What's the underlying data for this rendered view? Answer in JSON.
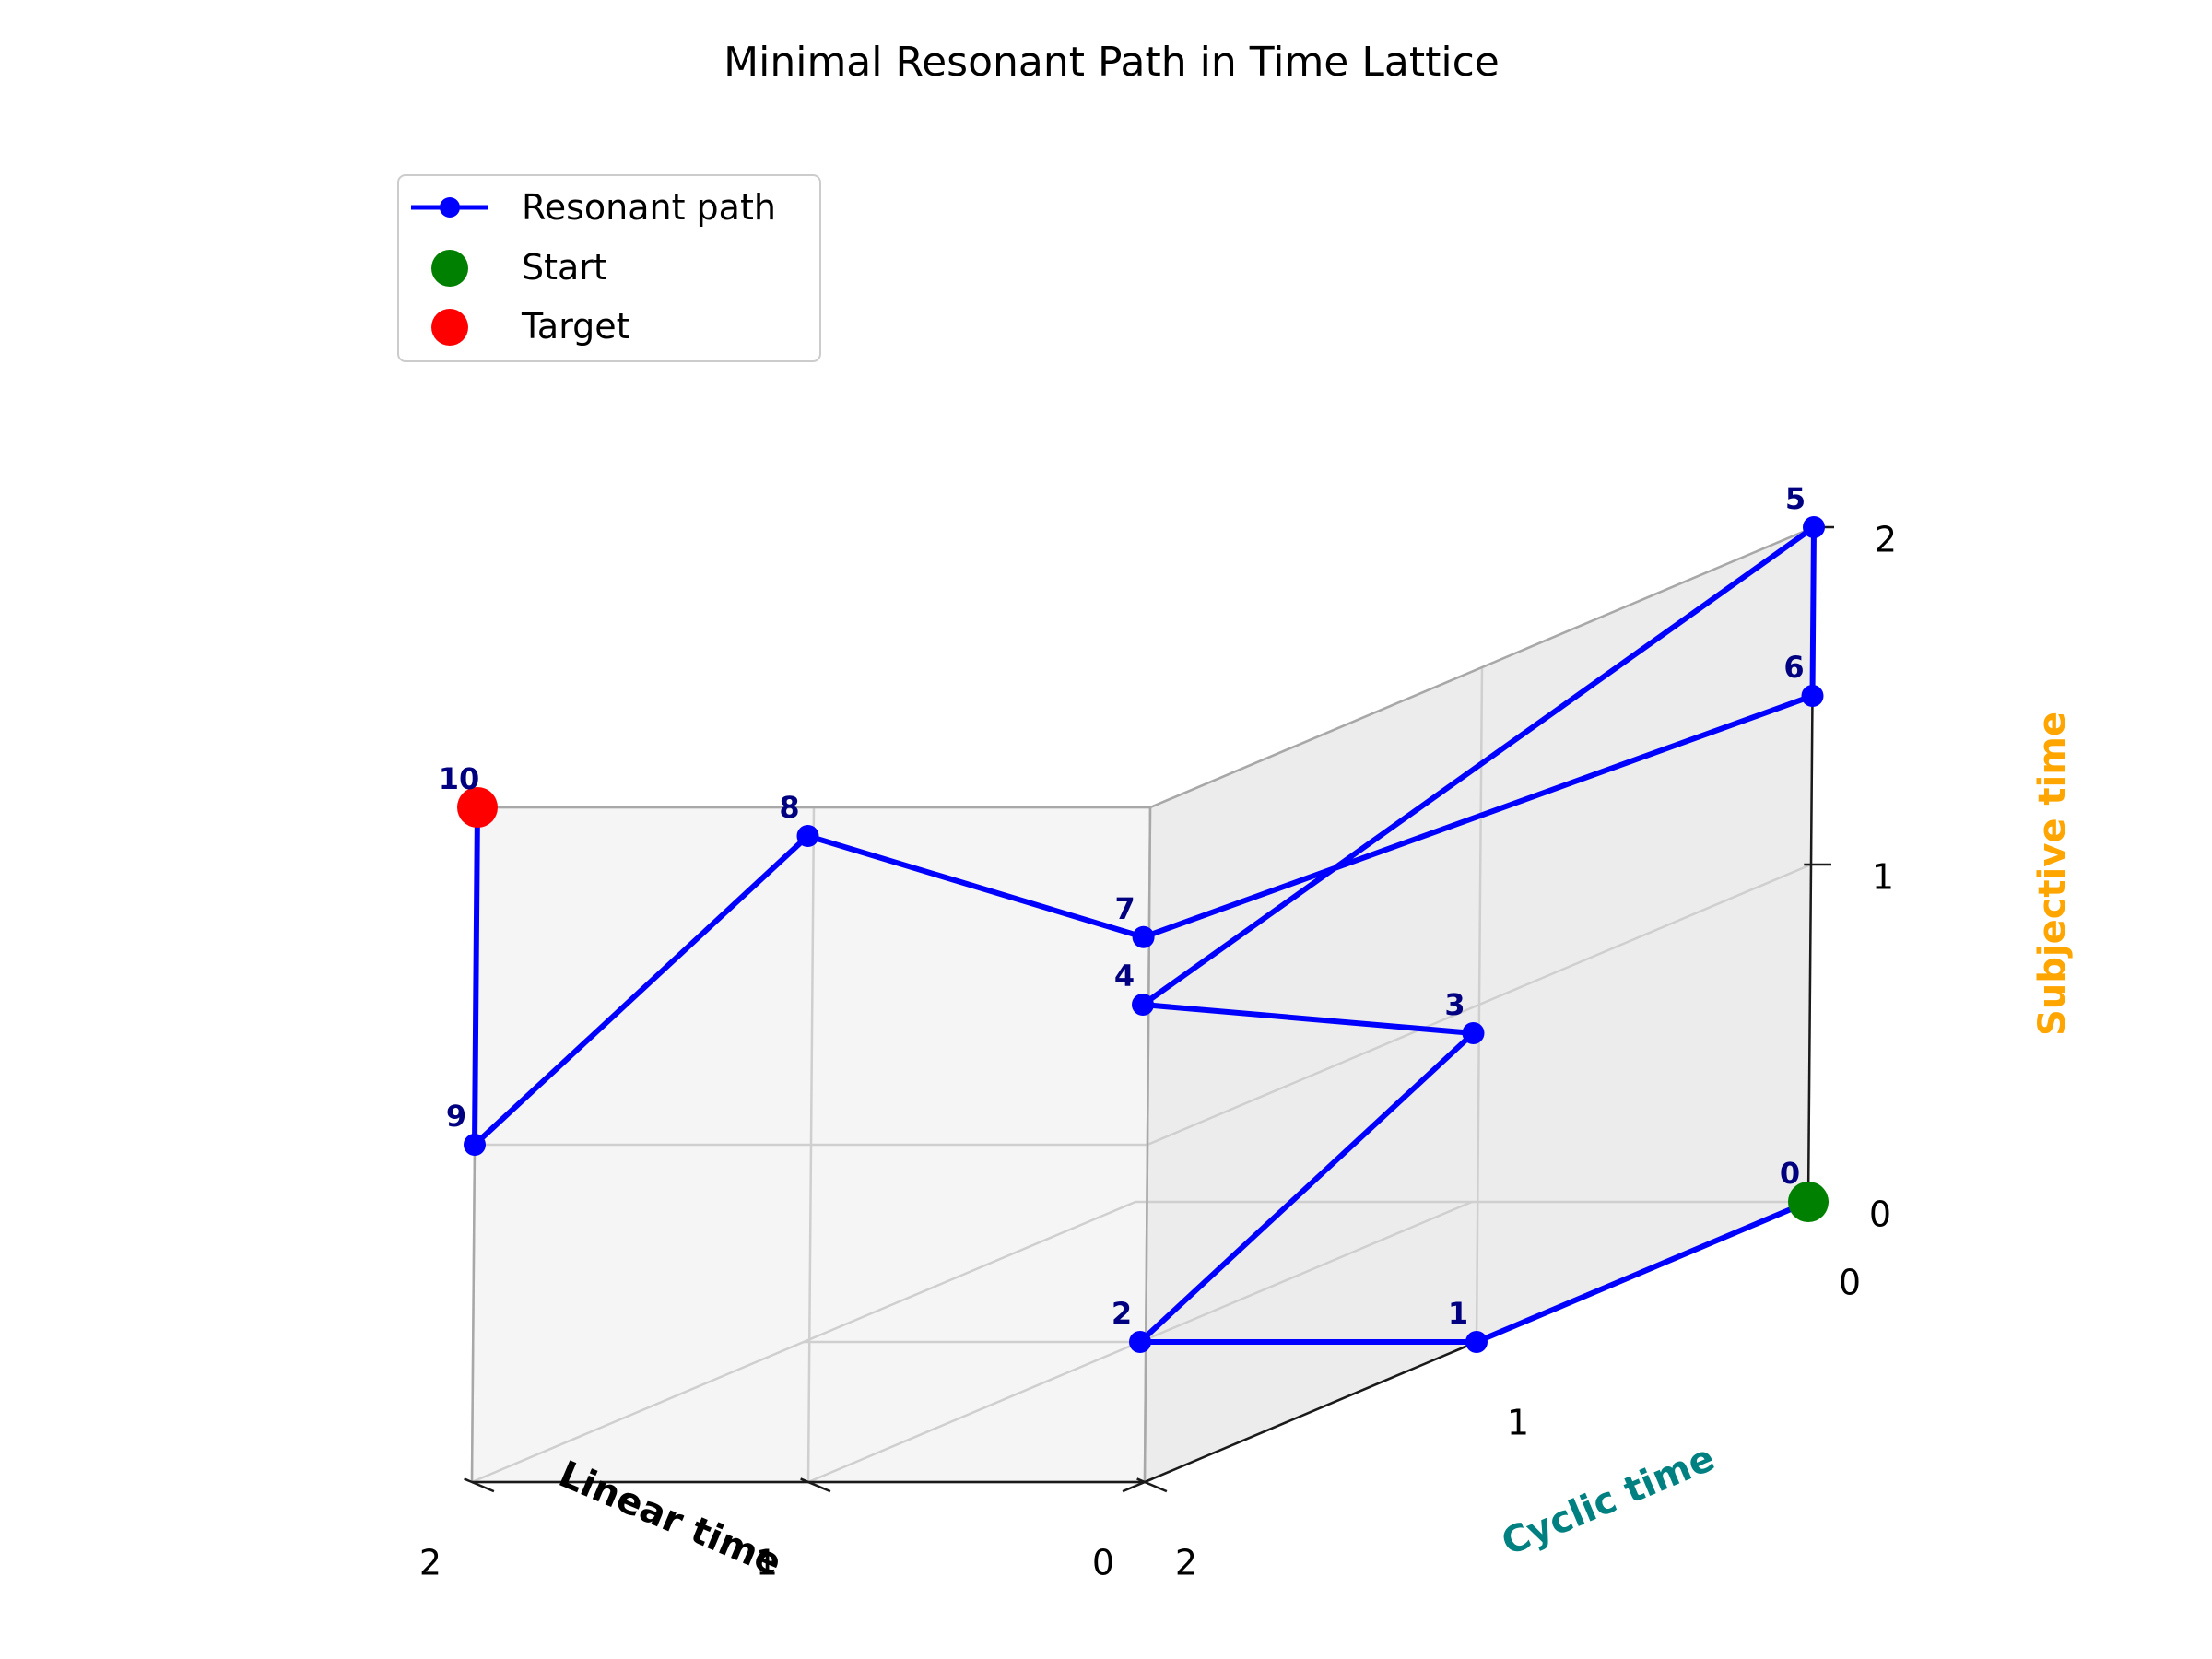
{
  "chart_data": {
    "type": "line3d",
    "title": "Minimal Resonant Path in Time Lattice",
    "axes": {
      "x": {
        "label": "Linear time",
        "range": [
          0,
          2
        ],
        "ticks": [
          0,
          1,
          2
        ],
        "color": "#000000"
      },
      "y": {
        "label": "Cyclic time",
        "range": [
          0,
          2
        ],
        "ticks": [
          0,
          1,
          2
        ],
        "color": "#008080"
      },
      "z": {
        "label": "Subjective time",
        "range": [
          0,
          2
        ],
        "ticks": [
          0,
          1,
          2
        ],
        "color": "#FFA500"
      }
    },
    "grid": true,
    "legend": {
      "placement": "top-left",
      "entries": [
        {
          "label": "Resonant path",
          "color": "#0000FF",
          "kind": "line-marker"
        },
        {
          "label": "Start",
          "color": "#008000",
          "kind": "marker"
        },
        {
          "label": "Target",
          "color": "#FF0000",
          "kind": "marker"
        }
      ]
    },
    "series": [
      {
        "name": "Resonant path",
        "color": "#0000FF",
        "points": [
          {
            "label": "0",
            "x": 0,
            "y": 0,
            "z": 0
          },
          {
            "label": "1",
            "x": 0,
            "y": 1,
            "z": 0
          },
          {
            "label": "2",
            "x": 1,
            "y": 1,
            "z": 0
          },
          {
            "label": "3",
            "x": 1,
            "y": 0,
            "z": 0.5
          },
          {
            "label": "4",
            "x": 1,
            "y": 1,
            "z": 1
          },
          {
            "label": "5",
            "x": 0,
            "y": 0,
            "z": 2
          },
          {
            "label": "6",
            "x": 0,
            "y": 0,
            "z": 1.5
          },
          {
            "label": "7",
            "x": 1,
            "y": 1,
            "z": 1.2
          },
          {
            "label": "8",
            "x": 2,
            "y": 1,
            "z": 1.5
          },
          {
            "label": "9",
            "x": 2,
            "y": 2,
            "z": 1
          },
          {
            "label": "10",
            "x": 2,
            "y": 2,
            "z": 2
          }
        ]
      }
    ],
    "start": {
      "label": "Start",
      "x": 0,
      "y": 0,
      "z": 0,
      "color": "#008000"
    },
    "target": {
      "label": "Target",
      "x": 2,
      "y": 2,
      "z": 2,
      "color": "#FF0000"
    }
  }
}
